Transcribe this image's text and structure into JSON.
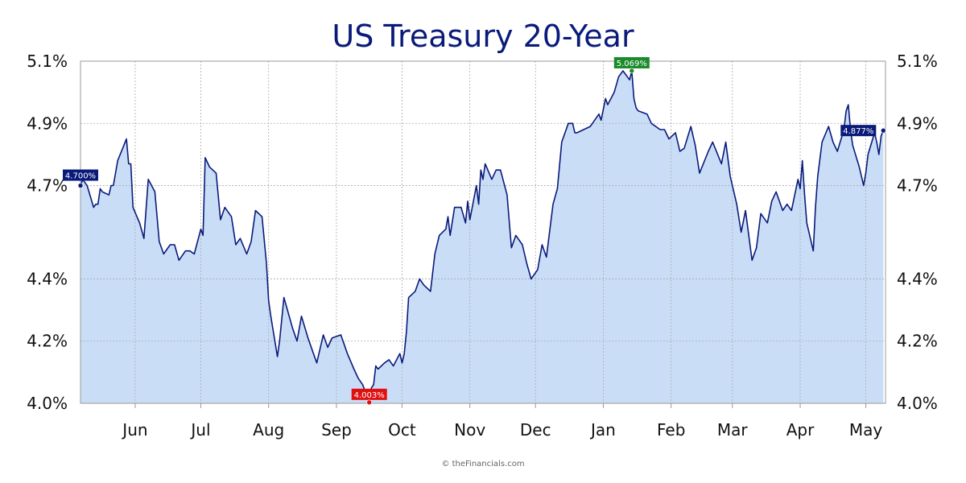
{
  "chart_data": {
    "type": "area",
    "title": "US Treasury 20-Year",
    "xlabel": "",
    "ylabel": "",
    "ylim": [
      4.0,
      5.1
    ],
    "y_ticks": [
      {
        "value": 4.0,
        "label": "4.0%"
      },
      {
        "value": 4.2,
        "label": "4.2%"
      },
      {
        "value": 4.4,
        "label": "4.4%"
      },
      {
        "value": 4.7,
        "label": "4.7%"
      },
      {
        "value": 4.9,
        "label": "4.9%"
      },
      {
        "value": 5.1,
        "label": "5.1%"
      }
    ],
    "x_ticks": [
      {
        "value": "2024-06-01",
        "label": "Jun"
      },
      {
        "value": "2024-07-01",
        "label": "Jul"
      },
      {
        "value": "2024-08-01",
        "label": "Aug"
      },
      {
        "value": "2024-09-01",
        "label": "Sep"
      },
      {
        "value": "2024-10-01",
        "label": "Oct"
      },
      {
        "value": "2024-11-01",
        "label": "Nov"
      },
      {
        "value": "2024-12-01",
        "label": "Dec"
      },
      {
        "value": "2025-01-01",
        "label": "Jan"
      },
      {
        "value": "2025-02-01",
        "label": "Feb"
      },
      {
        "value": "2025-03-01",
        "label": "Mar"
      },
      {
        "value": "2025-04-01",
        "label": "Apr"
      },
      {
        "value": "2025-05-01",
        "label": "May"
      }
    ],
    "xlim": [
      "2024-05-07",
      "2025-05-10"
    ],
    "grid": true,
    "colors": {
      "line": "#0a1a7a",
      "fill": "#c9def6",
      "grid": "#aaaaaa",
      "start_label": "#0a1a7a",
      "min_label": "#e01010",
      "max_label": "#1a8a2a",
      "end_label": "#0a1a7a"
    },
    "annotations": [
      {
        "x": "2024-05-07",
        "y": 4.7,
        "label": "4.700%",
        "kind": "start"
      },
      {
        "x": "2024-09-16",
        "y": 4.003,
        "label": "4.003%",
        "kind": "min"
      },
      {
        "x": "2025-01-14",
        "y": 5.069,
        "label": "5.069%",
        "kind": "max"
      },
      {
        "x": "2025-05-09",
        "y": 4.877,
        "label": "4.877%",
        "kind": "end"
      }
    ],
    "series": [
      {
        "x": [
          "2024-05-07",
          "2024-05-08",
          "2024-05-09",
          "2024-05-10",
          "2024-05-13",
          "2024-05-14",
          "2024-05-15",
          "2024-05-16",
          "2024-05-17",
          "2024-05-20",
          "2024-05-21",
          "2024-05-22",
          "2024-05-23",
          "2024-05-24",
          "2024-05-28",
          "2024-05-29",
          "2024-05-30",
          "2024-05-31",
          "2024-06-03",
          "2024-06-05",
          "2024-06-07",
          "2024-06-10",
          "2024-06-12",
          "2024-06-14",
          "2024-06-17",
          "2024-06-19",
          "2024-06-21",
          "2024-06-24",
          "2024-06-26",
          "2024-06-28",
          "2024-07-01",
          "2024-07-02",
          "2024-07-03",
          "2024-07-05",
          "2024-07-08",
          "2024-07-10",
          "2024-07-12",
          "2024-07-15",
          "2024-07-17",
          "2024-07-19",
          "2024-07-22",
          "2024-07-24",
          "2024-07-26",
          "2024-07-29",
          "2024-07-31",
          "2024-08-01",
          "2024-08-02",
          "2024-08-05",
          "2024-08-06",
          "2024-08-07",
          "2024-08-08",
          "2024-08-12",
          "2024-08-14",
          "2024-08-16",
          "2024-08-19",
          "2024-08-21",
          "2024-08-23",
          "2024-08-26",
          "2024-08-28",
          "2024-08-30",
          "2024-09-03",
          "2024-09-04",
          "2024-09-06",
          "2024-09-09",
          "2024-09-11",
          "2024-09-13",
          "2024-09-16",
          "2024-09-17",
          "2024-09-18",
          "2024-09-19",
          "2024-09-20",
          "2024-09-23",
          "2024-09-25",
          "2024-09-27",
          "2024-09-30",
          "2024-10-01",
          "2024-10-02",
          "2024-10-03",
          "2024-10-04",
          "2024-10-07",
          "2024-10-09",
          "2024-10-11",
          "2024-10-14",
          "2024-10-16",
          "2024-10-18",
          "2024-10-21",
          "2024-10-22",
          "2024-10-23",
          "2024-10-25",
          "2024-10-28",
          "2024-10-30",
          "2024-10-31",
          "2024-11-01",
          "2024-11-04",
          "2024-11-05",
          "2024-11-06",
          "2024-11-07",
          "2024-11-08",
          "2024-11-11",
          "2024-11-13",
          "2024-11-15",
          "2024-11-18",
          "2024-11-20",
          "2024-11-22",
          "2024-11-25",
          "2024-11-27",
          "2024-11-29",
          "2024-12-02",
          "2024-12-04",
          "2024-12-06",
          "2024-12-09",
          "2024-12-11",
          "2024-12-13",
          "2024-12-16",
          "2024-12-18",
          "2024-12-19",
          "2024-12-20",
          "2024-12-23",
          "2024-12-26",
          "2024-12-27",
          "2024-12-30",
          "2024-12-31",
          "2025-01-02",
          "2025-01-03",
          "2025-01-06",
          "2025-01-08",
          "2025-01-10",
          "2025-01-13",
          "2025-01-14",
          "2025-01-15",
          "2025-01-16",
          "2025-01-17",
          "2025-01-21",
          "2025-01-23",
          "2025-01-27",
          "2025-01-29",
          "2025-01-31",
          "2025-02-03",
          "2025-02-05",
          "2025-02-07",
          "2025-02-10",
          "2025-02-12",
          "2025-02-14",
          "2025-02-18",
          "2025-02-20",
          "2025-02-24",
          "2025-02-26",
          "2025-02-28",
          "2025-03-03",
          "2025-03-05",
          "2025-03-07",
          "2025-03-10",
          "2025-03-12",
          "2025-03-14",
          "2025-03-17",
          "2025-03-19",
          "2025-03-21",
          "2025-03-24",
          "2025-03-26",
          "2025-03-28",
          "2025-03-31",
          "2025-04-01",
          "2025-04-02",
          "2025-04-03",
          "2025-04-04",
          "2025-04-07",
          "2025-04-08",
          "2025-04-09",
          "2025-04-11",
          "2025-04-14",
          "2025-04-16",
          "2025-04-18",
          "2025-04-21",
          "2025-04-22",
          "2025-04-23",
          "2025-04-24",
          "2025-04-25",
          "2025-04-28",
          "2025-04-30",
          "2025-05-01",
          "2025-05-02",
          "2025-05-05",
          "2025-05-06",
          "2025-05-07",
          "2025-05-08",
          "2025-05-09"
        ],
        "values": [
          4.7,
          4.72,
          4.71,
          4.7,
          4.63,
          4.64,
          4.64,
          4.69,
          4.68,
          4.67,
          4.7,
          4.7,
          4.74,
          4.78,
          4.85,
          4.77,
          4.77,
          4.63,
          4.58,
          4.53,
          4.72,
          4.68,
          4.52,
          4.48,
          4.51,
          4.51,
          4.46,
          4.49,
          4.49,
          4.48,
          4.56,
          4.54,
          4.79,
          4.76,
          4.74,
          4.59,
          4.63,
          4.6,
          4.51,
          4.53,
          4.48,
          4.52,
          4.62,
          4.6,
          4.45,
          4.33,
          4.28,
          4.15,
          4.2,
          4.27,
          4.34,
          4.24,
          4.2,
          4.28,
          4.21,
          4.17,
          4.13,
          4.22,
          4.18,
          4.21,
          4.22,
          4.2,
          4.16,
          4.11,
          4.08,
          4.06,
          4.003,
          4.05,
          4.06,
          4.12,
          4.11,
          4.13,
          4.14,
          4.12,
          4.16,
          4.13,
          4.16,
          4.23,
          4.34,
          4.36,
          4.4,
          4.38,
          4.36,
          4.48,
          4.54,
          4.56,
          4.6,
          4.54,
          4.63,
          4.63,
          4.58,
          4.65,
          4.59,
          4.7,
          4.64,
          4.75,
          4.72,
          4.77,
          4.72,
          4.75,
          4.75,
          4.67,
          4.5,
          4.54,
          4.51,
          4.45,
          4.4,
          4.43,
          4.51,
          4.47,
          4.64,
          4.69,
          4.84,
          4.9,
          4.9,
          4.87,
          4.87,
          4.88,
          4.89,
          4.9,
          4.93,
          4.91,
          4.98,
          4.96,
          5.0,
          5.05,
          5.069,
          5.04,
          5.069,
          4.98,
          4.95,
          4.94,
          4.93,
          4.9,
          4.88,
          4.88,
          4.85,
          4.87,
          4.81,
          4.82,
          4.89,
          4.83,
          4.74,
          4.81,
          4.84,
          4.77,
          4.84,
          4.73,
          4.64,
          4.55,
          4.62,
          4.46,
          4.5,
          4.61,
          4.58,
          4.65,
          4.68,
          4.62,
          4.64,
          4.62,
          4.72,
          4.69,
          4.78,
          4.67,
          4.58,
          4.49,
          4.63,
          4.73,
          4.84,
          4.89,
          4.84,
          4.81,
          4.88,
          4.94,
          4.96,
          4.88,
          4.83,
          4.76,
          4.7,
          4.74,
          4.8,
          4.87,
          4.84,
          4.8,
          4.86,
          4.877
        ]
      }
    ]
  },
  "footer": {
    "credit": "© theFinancials.com"
  }
}
